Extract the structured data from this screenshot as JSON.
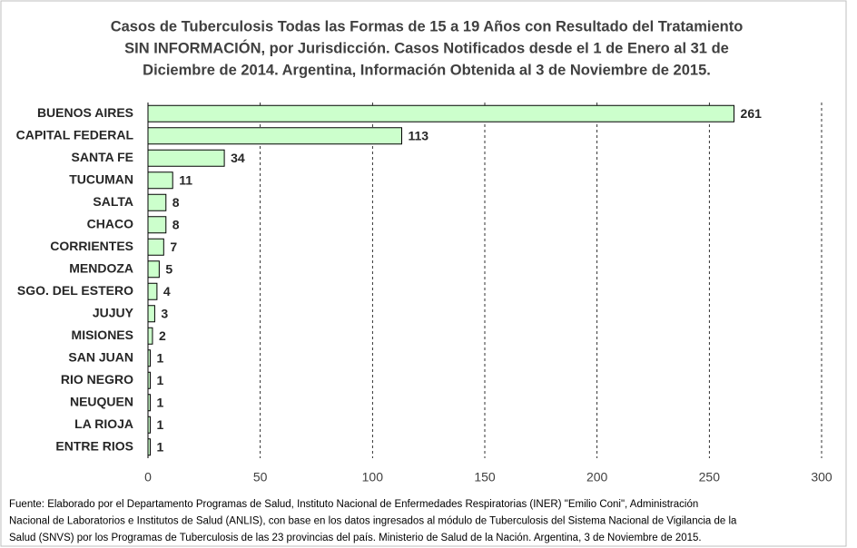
{
  "chart_data": {
    "type": "bar",
    "orientation": "horizontal",
    "title": [
      "Casos de Tuberculosis Todas las Formas de 15 a 19 Años con Resultado del Tratamiento",
      "SIN INFORMACIÓN, por Jurisdicción. Casos Notificados desde el 1 de Enero al 31 de",
      "Diciembre de 2014. Argentina, Información Obtenida al 3 de Noviembre de 2015."
    ],
    "categories": [
      "BUENOS AIRES",
      "CAPITAL FEDERAL",
      "SANTA FE",
      "TUCUMAN",
      "SALTA",
      "CHACO",
      "CORRIENTES",
      "MENDOZA",
      "SGO. DEL ESTERO",
      "JUJUY",
      "MISIONES",
      "SAN JUAN",
      "RIO NEGRO",
      "NEUQUEN",
      "LA RIOJA",
      "ENTRE RIOS"
    ],
    "values": [
      261,
      113,
      34,
      11,
      8,
      8,
      7,
      5,
      4,
      3,
      2,
      1,
      1,
      1,
      1,
      1
    ],
    "color": "#ccffcc",
    "edge_color": "#000000",
    "xlim": [
      0,
      300
    ],
    "xticks": [
      0,
      50,
      100,
      150,
      200,
      250,
      300
    ],
    "grid": true,
    "source": [
      "Fuente: Elaborado por el Departamento Programas de Salud, Instituto Nacional de Enfermedades Respiratorias (INER) \"Emilio Coni\", Administración",
      "Nacional de Laboratorios e Institutos de Salud (ANLIS), con base en los datos ingresados al módulo de Tuberculosis del Sistema Nacional de Vigilancia de la",
      "Salud (SNVS) por los Programas de Tuberculosis de las 23 provincias del país. Ministerio de Salud de la Nación. Argentina,  3 de Noviembre de 2015."
    ]
  }
}
